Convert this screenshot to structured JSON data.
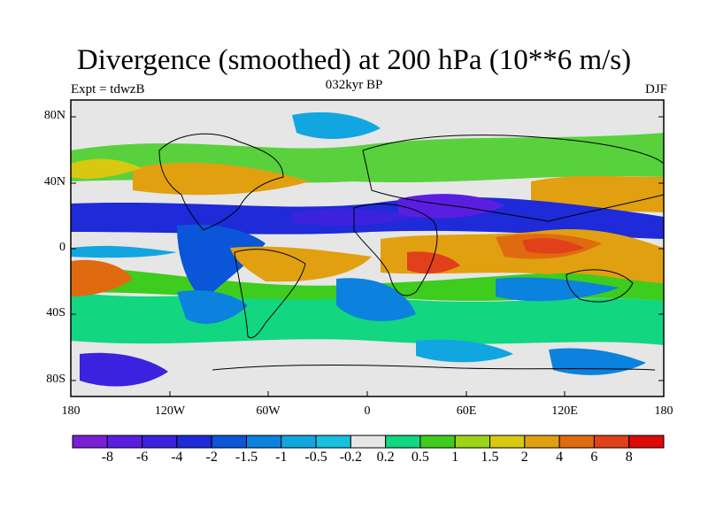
{
  "header": {
    "title": "Divergence (smoothed) at 200 hPa (10**6 m/s)",
    "subtitle": "032kyr BP",
    "left_label": "Expt = tdwzB",
    "right_label": "DJF"
  },
  "map": {
    "lat_labels": [
      "80N",
      "40N",
      "0",
      "40S",
      "80S"
    ],
    "lon_labels": [
      "180",
      "120W",
      "60W",
      "0",
      "60E",
      "120E",
      "180"
    ]
  },
  "colorbar": {
    "labels": [
      "-8",
      "-6",
      "-4",
      "-2",
      "-1.5",
      "-1",
      "-0.5",
      "-0.2",
      "0.2",
      "0.5",
      "1",
      "1.5",
      "2",
      "4",
      "6",
      "8"
    ],
    "colors": [
      "#7a1fd6",
      "#5a1ee0",
      "#3a22de",
      "#1f2ad8",
      "#0a55d8",
      "#0a82de",
      "#12a6e0",
      "#18c0e0",
      "#e6e6e6",
      "#12d680",
      "#3ecc1e",
      "#9cd418",
      "#d8c810",
      "#e0a010",
      "#e06a10",
      "#e0401a",
      "#dc0a0a"
    ]
  }
}
